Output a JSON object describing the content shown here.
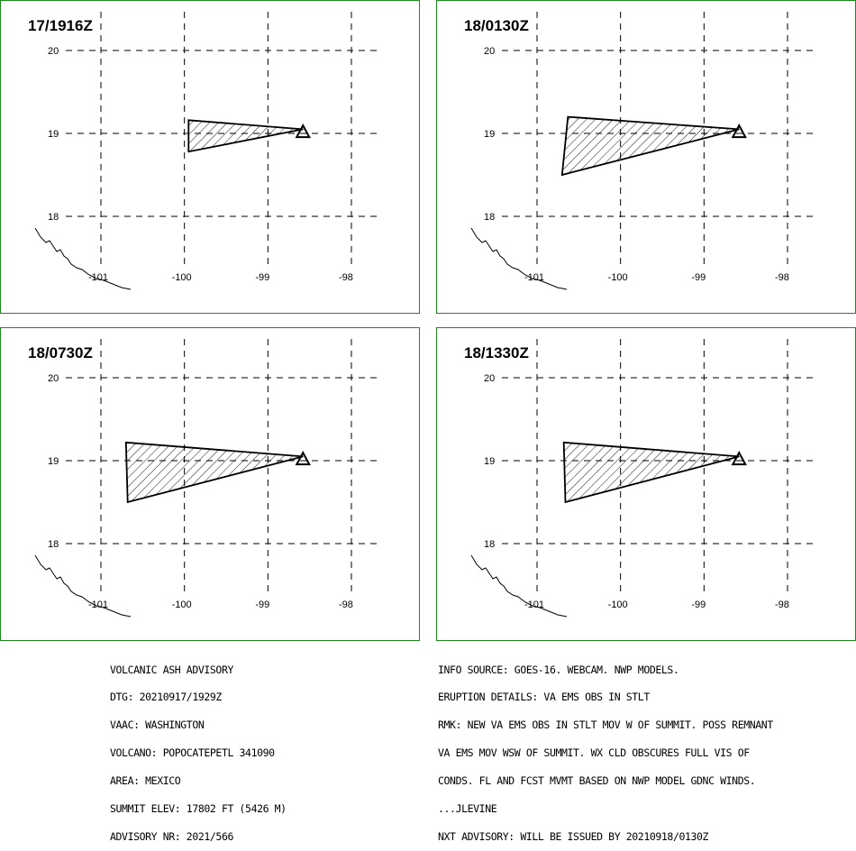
{
  "panels": [
    {
      "time": "17/1916Z",
      "poly": [
        [
          -99.95,
          19.16
        ],
        [
          -98.58,
          19.05
        ],
        [
          -99.95,
          18.78
        ]
      ]
    },
    {
      "time": "18/0130Z",
      "poly": [
        [
          -100.63,
          19.2
        ],
        [
          -98.58,
          19.05
        ],
        [
          -100.7,
          18.5
        ]
      ]
    },
    {
      "time": "18/0730Z",
      "poly": [
        [
          -100.7,
          19.22
        ],
        [
          -98.58,
          19.05
        ],
        [
          -100.68,
          18.5
        ]
      ]
    },
    {
      "time": "18/1330Z",
      "poly": [
        [
          -100.68,
          19.22
        ],
        [
          -98.58,
          19.05
        ],
        [
          -100.66,
          18.5
        ]
      ]
    }
  ],
  "map": {
    "lat_labels": [
      "20",
      "19",
      "18"
    ],
    "lon_labels": [
      "-101",
      "-100",
      "-99",
      "-98"
    ],
    "volcano_icon": "triangle-volcano-icon"
  },
  "advisory_left": [
    "VOLCANIC ASH ADVISORY",
    "DTG: 20210917/1929Z",
    "VAAC: WASHINGTON",
    "VOLCANO: POPOCATEPETL 341090",
    "AREA: MEXICO",
    "SUMMIT ELEV: 17802 FT (5426 M)",
    "ADVISORY NR: 2021/566"
  ],
  "advisory_right": [
    "INFO SOURCE: GOES-16. WEBCAM. NWP MODELS.",
    "ERUPTION DETAILS: VA EMS OBS IN STLT",
    "RMK: NEW VA EMS OBS IN STLT MOV W OF SUMMIT. POSS REMNANT",
    "VA EMS MOV WSW OF SUMMIT. WX CLD OBSCURES FULL VIS OF",
    "CONDS. FL AND FCST MVMT BASED ON NWP MODEL GDNC WINDS.",
    "...JLEVINE",
    "NXT ADVISORY: WILL BE ISSUED BY 20210918/0130Z"
  ],
  "colors": {
    "border": "#1a8a1a",
    "ink": "#000000"
  }
}
